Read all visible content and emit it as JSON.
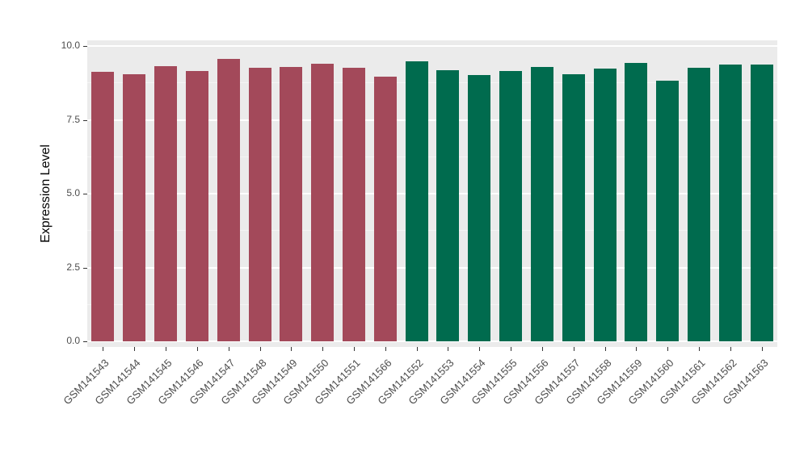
{
  "chart_data": {
    "type": "bar",
    "title": "",
    "xlabel": "",
    "ylabel": "Expression Level",
    "ylim": [
      0,
      10
    ],
    "y_ticks": [
      0,
      2.5,
      5,
      7.5,
      10
    ],
    "y_tick_labels": [
      "0.0",
      "2.5",
      "5.0",
      "7.5",
      "10.0"
    ],
    "y_minor_ticks": [
      1.25,
      3.75,
      6.25,
      8.75
    ],
    "grid": true,
    "legend_position": "none",
    "panel_background": "#EBEBEB",
    "group_colors": {
      "group1": "#A3495A",
      "group2": "#006B4E"
    },
    "categories": [
      "GSM141543",
      "GSM141544",
      "GSM141545",
      "GSM141546",
      "GSM141547",
      "GSM141548",
      "GSM141549",
      "GSM141550",
      "GSM141551",
      "GSM141566",
      "GSM141552",
      "GSM141553",
      "GSM141554",
      "GSM141555",
      "GSM141556",
      "GSM141557",
      "GSM141558",
      "GSM141559",
      "GSM141560",
      "GSM141561",
      "GSM141562",
      "GSM141563"
    ],
    "values": [
      9.12,
      9.05,
      9.32,
      9.15,
      9.55,
      9.27,
      9.29,
      9.4,
      9.27,
      8.96,
      9.47,
      9.19,
      9.01,
      9.15,
      9.29,
      9.04,
      9.23,
      9.42,
      8.82,
      9.27,
      9.37,
      9.37
    ],
    "bar_colors": [
      "#A3495A",
      "#A3495A",
      "#A3495A",
      "#A3495A",
      "#A3495A",
      "#A3495A",
      "#A3495A",
      "#A3495A",
      "#A3495A",
      "#A3495A",
      "#006B4E",
      "#006B4E",
      "#006B4E",
      "#006B4E",
      "#006B4E",
      "#006B4E",
      "#006B4E",
      "#006B4E",
      "#006B4E",
      "#006B4E",
      "#006B4E",
      "#006B4E"
    ]
  }
}
